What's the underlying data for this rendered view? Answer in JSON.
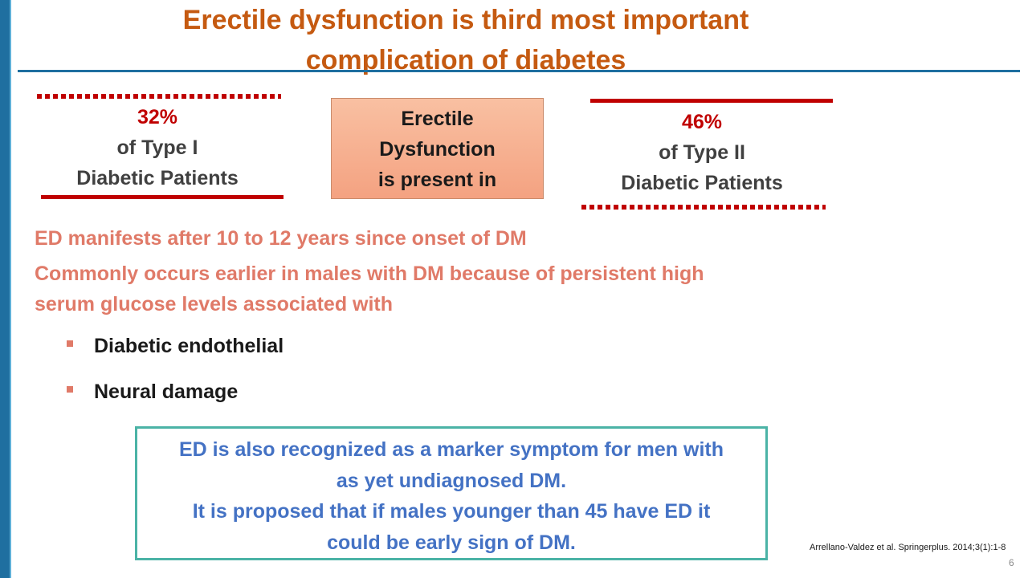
{
  "title": {
    "line1": "Erectile dysfunction is third most important",
    "line2": "complication of diabetes"
  },
  "stats": {
    "type1": {
      "percent": "32%",
      "line1": "of Type I",
      "line2": "Diabetic Patients"
    },
    "center": {
      "line1": "Erectile",
      "line2": "Dysfunction",
      "line3": "is present in"
    },
    "type2": {
      "percent": "46%",
      "line1": "of Type II",
      "line2": "Diabetic Patients"
    }
  },
  "body": {
    "para1": "ED manifests after 10 to 12 years since onset of DM",
    "para2_line1": "Commonly occurs earlier in males with DM because of persistent high",
    "para2_line2": "serum glucose levels associated with",
    "bullets": [
      "Diabetic endothelial",
      "Neural damage"
    ]
  },
  "callout": {
    "line1": "ED is also recognized as a marker symptom for men with",
    "line2": "as yet undiagnosed DM.",
    "line3": "It is proposed that if males younger than 45 have ED it",
    "line4": "could be early sign of  DM."
  },
  "citation": "Arrellano-Valdez et al. Springerplus. 2014;3(1):1-8",
  "page_number": "6",
  "colors": {
    "title": "#c55a11",
    "accent_red": "#c00000",
    "salmon_text": "#e07a68",
    "callout_text": "#4472c4",
    "callout_border": "#4bb3a6",
    "rule_blue": "#1f6fa0"
  }
}
